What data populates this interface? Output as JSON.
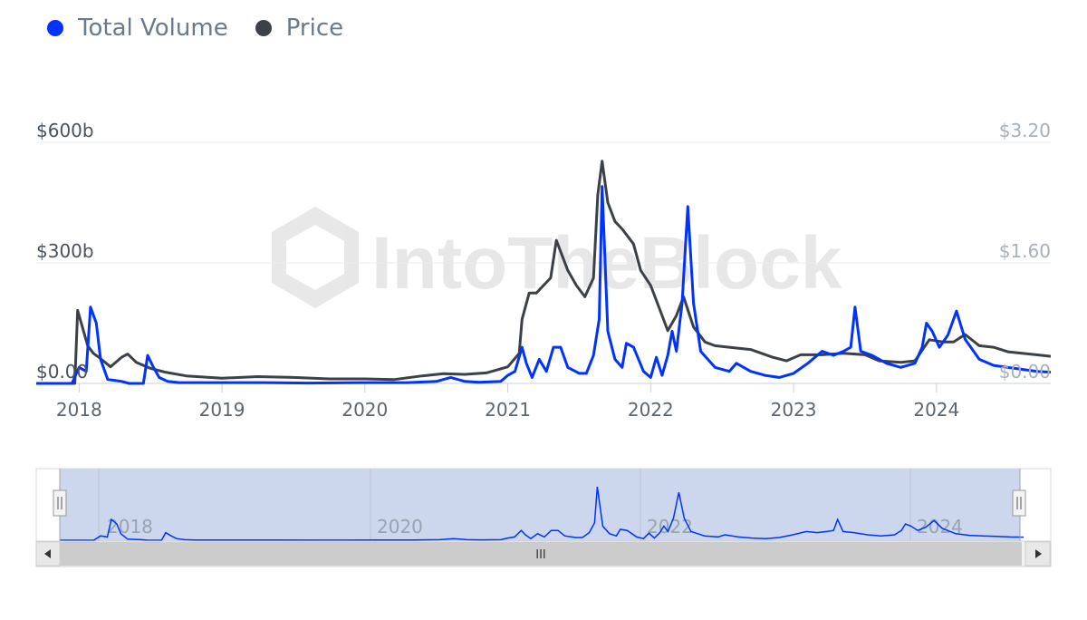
{
  "legend": [
    {
      "label": "Total Volume",
      "color": "#0033ff"
    },
    {
      "label": "Price",
      "color": "#3c4148"
    }
  ],
  "watermark": "IntoTheBlock",
  "navigator": {
    "labels": [
      "2018",
      "2020",
      "2022",
      "2024"
    ],
    "scroll_grip": "III"
  },
  "chart_data": {
    "type": "line",
    "x_ticks": [
      "2018",
      "2019",
      "2020",
      "2021",
      "2022",
      "2023",
      "2024"
    ],
    "y_left": {
      "ticks": [
        "$0.00",
        "$300b",
        "$600b"
      ],
      "values": [
        0,
        300,
        600
      ],
      "range": [
        0,
        600
      ]
    },
    "y_right": {
      "ticks": [
        "$0.00",
        "$1.60",
        "$3.20"
      ],
      "values": [
        0,
        1.6,
        3.2
      ],
      "range": [
        0,
        3.2
      ]
    },
    "x_range": [
      2017.7,
      2024.8
    ],
    "grid": true,
    "legend_position": "top-left",
    "series": [
      {
        "name": "Total Volume",
        "color": "#0033ff",
        "axis": "left",
        "points": [
          [
            2017.7,
            0
          ],
          [
            2017.95,
            0
          ],
          [
            2018.0,
            40
          ],
          [
            2018.05,
            30
          ],
          [
            2018.08,
            190
          ],
          [
            2018.12,
            150
          ],
          [
            2018.15,
            60
          ],
          [
            2018.2,
            10
          ],
          [
            2018.3,
            5
          ],
          [
            2018.35,
            0
          ],
          [
            2018.45,
            0
          ],
          [
            2018.48,
            70
          ],
          [
            2018.52,
            40
          ],
          [
            2018.56,
            15
          ],
          [
            2018.62,
            5
          ],
          [
            2018.7,
            2
          ],
          [
            2019.0,
            2
          ],
          [
            2019.3,
            2
          ],
          [
            2019.6,
            1
          ],
          [
            2020.0,
            2
          ],
          [
            2020.3,
            2
          ],
          [
            2020.5,
            5
          ],
          [
            2020.6,
            15
          ],
          [
            2020.7,
            5
          ],
          [
            2020.8,
            3
          ],
          [
            2020.95,
            5
          ],
          [
            2021.0,
            20
          ],
          [
            2021.05,
            30
          ],
          [
            2021.1,
            90
          ],
          [
            2021.13,
            50
          ],
          [
            2021.17,
            15
          ],
          [
            2021.22,
            60
          ],
          [
            2021.27,
            30
          ],
          [
            2021.32,
            90
          ],
          [
            2021.37,
            90
          ],
          [
            2021.42,
            40
          ],
          [
            2021.5,
            25
          ],
          [
            2021.55,
            25
          ],
          [
            2021.6,
            70
          ],
          [
            2021.64,
            160
          ],
          [
            2021.66,
            490
          ],
          [
            2021.7,
            130
          ],
          [
            2021.75,
            60
          ],
          [
            2021.8,
            40
          ],
          [
            2021.83,
            100
          ],
          [
            2021.88,
            90
          ],
          [
            2021.95,
            30
          ],
          [
            2022.0,
            15
          ],
          [
            2022.04,
            65
          ],
          [
            2022.08,
            20
          ],
          [
            2022.12,
            70
          ],
          [
            2022.15,
            130
          ],
          [
            2022.18,
            80
          ],
          [
            2022.22,
            200
          ],
          [
            2022.26,
            440
          ],
          [
            2022.3,
            200
          ],
          [
            2022.35,
            80
          ],
          [
            2022.4,
            60
          ],
          [
            2022.45,
            40
          ],
          [
            2022.55,
            30
          ],
          [
            2022.6,
            50
          ],
          [
            2022.7,
            30
          ],
          [
            2022.8,
            20
          ],
          [
            2022.9,
            15
          ],
          [
            2023.0,
            25
          ],
          [
            2023.1,
            50
          ],
          [
            2023.2,
            80
          ],
          [
            2023.28,
            70
          ],
          [
            2023.35,
            80
          ],
          [
            2023.4,
            90
          ],
          [
            2023.43,
            190
          ],
          [
            2023.47,
            80
          ],
          [
            2023.55,
            70
          ],
          [
            2023.65,
            50
          ],
          [
            2023.75,
            40
          ],
          [
            2023.85,
            50
          ],
          [
            2023.9,
            90
          ],
          [
            2023.93,
            150
          ],
          [
            2023.97,
            130
          ],
          [
            2024.02,
            90
          ],
          [
            2024.08,
            120
          ],
          [
            2024.14,
            180
          ],
          [
            2024.2,
            110
          ],
          [
            2024.3,
            60
          ],
          [
            2024.4,
            45
          ],
          [
            2024.5,
            40
          ],
          [
            2024.6,
            35
          ],
          [
            2024.7,
            30
          ],
          [
            2024.8,
            28
          ]
        ]
      },
      {
        "name": "Price",
        "color": "#3c4148",
        "axis": "right",
        "points": [
          [
            2017.7,
            0
          ],
          [
            2017.97,
            0
          ],
          [
            2017.99,
            0.97
          ],
          [
            2018.03,
            0.7
          ],
          [
            2018.06,
            0.5
          ],
          [
            2018.1,
            0.4
          ],
          [
            2018.15,
            0.33
          ],
          [
            2018.22,
            0.22
          ],
          [
            2018.3,
            0.35
          ],
          [
            2018.34,
            0.39
          ],
          [
            2018.4,
            0.28
          ],
          [
            2018.5,
            0.2
          ],
          [
            2018.6,
            0.15
          ],
          [
            2018.75,
            0.1
          ],
          [
            2019.0,
            0.07
          ],
          [
            2019.25,
            0.09
          ],
          [
            2019.5,
            0.08
          ],
          [
            2019.75,
            0.06
          ],
          [
            2020.0,
            0.06
          ],
          [
            2020.2,
            0.05
          ],
          [
            2020.4,
            0.1
          ],
          [
            2020.55,
            0.13
          ],
          [
            2020.7,
            0.12
          ],
          [
            2020.85,
            0.14
          ],
          [
            2021.0,
            0.22
          ],
          [
            2021.08,
            0.4
          ],
          [
            2021.1,
            0.85
          ],
          [
            2021.15,
            1.2
          ],
          [
            2021.2,
            1.2
          ],
          [
            2021.25,
            1.3
          ],
          [
            2021.3,
            1.4
          ],
          [
            2021.34,
            1.9
          ],
          [
            2021.38,
            1.7
          ],
          [
            2021.42,
            1.5
          ],
          [
            2021.48,
            1.3
          ],
          [
            2021.54,
            1.15
          ],
          [
            2021.6,
            1.4
          ],
          [
            2021.63,
            2.5
          ],
          [
            2021.66,
            2.95
          ],
          [
            2021.7,
            2.4
          ],
          [
            2021.75,
            2.15
          ],
          [
            2021.8,
            2.05
          ],
          [
            2021.88,
            1.85
          ],
          [
            2021.93,
            1.5
          ],
          [
            2022.0,
            1.3
          ],
          [
            2022.06,
            1.0
          ],
          [
            2022.12,
            0.7
          ],
          [
            2022.18,
            0.9
          ],
          [
            2022.23,
            1.15
          ],
          [
            2022.3,
            0.75
          ],
          [
            2022.38,
            0.55
          ],
          [
            2022.45,
            0.5
          ],
          [
            2022.55,
            0.48
          ],
          [
            2022.7,
            0.45
          ],
          [
            2022.85,
            0.35
          ],
          [
            2022.95,
            0.3
          ],
          [
            2023.05,
            0.38
          ],
          [
            2023.2,
            0.38
          ],
          [
            2023.35,
            0.4
          ],
          [
            2023.5,
            0.38
          ],
          [
            2023.6,
            0.3
          ],
          [
            2023.75,
            0.28
          ],
          [
            2023.85,
            0.3
          ],
          [
            2023.95,
            0.58
          ],
          [
            2024.05,
            0.55
          ],
          [
            2024.12,
            0.55
          ],
          [
            2024.2,
            0.65
          ],
          [
            2024.3,
            0.5
          ],
          [
            2024.4,
            0.48
          ],
          [
            2024.5,
            0.42
          ],
          [
            2024.6,
            0.4
          ],
          [
            2024.7,
            0.38
          ],
          [
            2024.8,
            0.36
          ]
        ]
      }
    ]
  }
}
